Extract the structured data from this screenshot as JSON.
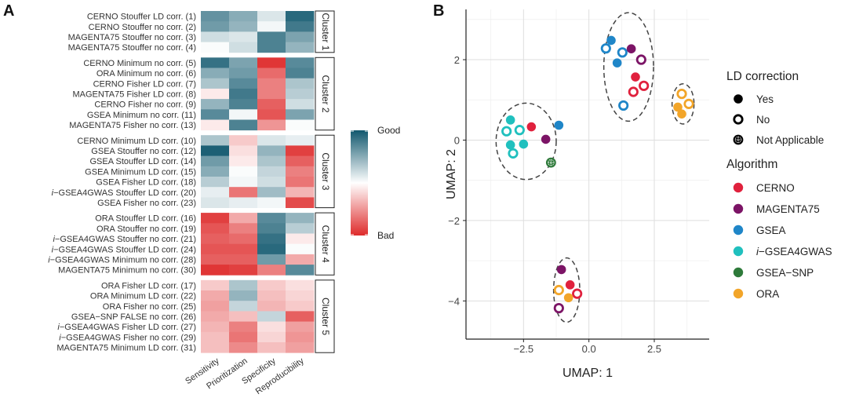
{
  "chart_data": [
    {
      "panel": "A",
      "type": "heatmap",
      "columns": [
        "Sensitivity",
        "Prioritization",
        "Specificity",
        "Reproducibility"
      ],
      "colorbar": {
        "top_label": "Good",
        "bottom_label": "Bad",
        "range": [
          -1,
          1
        ]
      },
      "clusters": [
        {
          "label": "Cluster 1",
          "rows": [
            {
              "label": "CERNO Stouffer LD corr. (1)",
              "values": [
                0.65,
                0.5,
                0.15,
                0.9
              ]
            },
            {
              "label": "CERNO Stouffer no corr. (2)",
              "values": [
                0.6,
                0.45,
                0.05,
                0.8
              ]
            },
            {
              "label": "MAGENTA75 Stouffer no corr. (3)",
              "values": [
                0.2,
                0.15,
                0.75,
                0.55
              ]
            },
            {
              "label": "MAGENTA75 Stouffer no corr. (4)",
              "values": [
                0.02,
                0.2,
                0.75,
                0.45
              ]
            }
          ]
        },
        {
          "label": "Cluster 2",
          "rows": [
            {
              "label": "CERNO Minimum no corr. (5)",
              "values": [
                0.85,
                0.55,
                -0.95,
                0.7
              ]
            },
            {
              "label": "ORA Minimum no corr. (6)",
              "values": [
                0.5,
                0.6,
                -0.7,
                0.75
              ]
            },
            {
              "label": "CERNO Fisher LD corr. (7)",
              "values": [
                0.35,
                0.7,
                -0.6,
                0.35
              ]
            },
            {
              "label": "MAGENTA75 Fisher LD corr. (8)",
              "values": [
                -0.1,
                0.8,
                -0.6,
                0.3
              ]
            },
            {
              "label": "CERNO Fisher no corr. (9)",
              "values": [
                0.45,
                0.75,
                -0.75,
                0.2
              ]
            },
            {
              "label": "GSEA Minimum no corr. (11)",
              "values": [
                0.7,
                0.05,
                -0.8,
                0.55
              ]
            },
            {
              "label": "MAGENTA75 Fisher no corr. (13)",
              "values": [
                -0.1,
                0.75,
                -0.5,
                0.02
              ]
            }
          ]
        },
        {
          "label": "Cluster 3",
          "rows": [
            {
              "label": "CERNO Minimum LD corr. (10)",
              "values": [
                0.35,
                -0.25,
                0.15,
                0.1
              ]
            },
            {
              "label": "GSEA Stouffer no corr. (12)",
              "values": [
                0.95,
                -0.15,
                0.45,
                -0.9
              ]
            },
            {
              "label": "GSEA Stouffer LD corr. (14)",
              "values": [
                0.6,
                -0.1,
                0.35,
                -0.75
              ]
            },
            {
              "label": "GSEA Minimum LD corr. (15)",
              "values": [
                0.5,
                0.02,
                0.25,
                -0.6
              ]
            },
            {
              "label": "GSEA Fisher LD corr. (18)",
              "values": [
                0.3,
                0.05,
                0.2,
                -0.65
              ]
            },
            {
              "label": "i−GSEA4GWAS Stouffer LD corr. (20)",
              "values": [
                0.1,
                -0.65,
                0.4,
                -0.35
              ]
            },
            {
              "label": "GSEA Fisher no corr. (23)",
              "values": [
                0.15,
                0.1,
                0.05,
                -0.85
              ]
            }
          ]
        },
        {
          "label": "Cluster 4",
          "rows": [
            {
              "label": "ORA Stouffer LD corr. (16)",
              "values": [
                -0.9,
                -0.4,
                0.7,
                0.45
              ]
            },
            {
              "label": "ORA Stouffer no corr. (19)",
              "values": [
                -0.8,
                -0.6,
                0.75,
                0.3
              ]
            },
            {
              "label": "i−GSEA4GWAS Stouffer no corr. (21)",
              "values": [
                -0.75,
                -0.7,
                0.85,
                -0.1
              ]
            },
            {
              "label": "i−GSEA4GWAS Stouffer LD corr. (24)",
              "values": [
                -0.8,
                -0.8,
                0.9,
                0.02
              ]
            },
            {
              "label": "i−GSEA4GWAS Minimum no corr. (28)",
              "values": [
                -0.75,
                -0.75,
                0.6,
                -0.4
              ]
            },
            {
              "label": "MAGENTA75 Minimum no corr. (30)",
              "values": [
                -0.95,
                -0.9,
                -0.6,
                0.7
              ]
            }
          ]
        },
        {
          "label": "Cluster 5",
          "rows": [
            {
              "label": "ORA Fisher LD corr. (17)",
              "values": [
                -0.25,
                0.35,
                -0.25,
                -0.15
              ]
            },
            {
              "label": "ORA Minimum LD corr. (22)",
              "values": [
                -0.4,
                0.45,
                -0.3,
                -0.2
              ]
            },
            {
              "label": "ORA Fisher no corr. (25)",
              "values": [
                -0.45,
                0.25,
                -0.35,
                -0.25
              ]
            },
            {
              "label": "GSEA−SNP FALSE no corr. (26)",
              "values": [
                -0.4,
                -0.3,
                0.25,
                -0.75
              ]
            },
            {
              "label": "i−GSEA4GWAS Fisher LD corr. (27)",
              "values": [
                -0.35,
                -0.6,
                -0.15,
                -0.45
              ]
            },
            {
              "label": "i−GSEA4GWAS Fisher no corr. (29)",
              "values": [
                -0.3,
                -0.65,
                -0.2,
                -0.5
              ]
            },
            {
              "label": "MAGENTA75 Minimum LD corr. (31)",
              "values": [
                -0.3,
                -0.55,
                -0.3,
                -0.45
              ]
            }
          ]
        }
      ]
    },
    {
      "panel": "B",
      "type": "scatter",
      "xlabel": "UMAP: 1",
      "ylabel": "UMAP: 2",
      "xlim": [
        -4.7,
        4.6
      ],
      "ylim": [
        -4.95,
        3.25
      ],
      "xticks": [
        -2.5,
        0.0,
        2.5
      ],
      "xtick_labels": [
        "−2.5",
        "0.0",
        "2.5"
      ],
      "yticks": [
        -4,
        -2,
        0,
        2
      ],
      "ytick_labels": [
        "−4",
        "−2",
        "0",
        "2"
      ],
      "grid": true,
      "algorithm_colors": {
        "CERNO": "#e0213d",
        "MAGENTA75": "#7c1466",
        "GSEA": "#1f86c8",
        "i-GSEA4GWAS": "#20c0be",
        "GSEA-SNP": "#2e7a3a",
        "ORA": "#f2a529"
      },
      "legend_ld": {
        "title": "LD correction",
        "items": [
          {
            "label": "Yes",
            "symbol": "filled"
          },
          {
            "label": "No",
            "symbol": "open"
          },
          {
            "label": "Not Applicable",
            "symbol": "crossed"
          }
        ]
      },
      "legend_algorithm": {
        "title": "Algorithm",
        "items": [
          {
            "label_prefix": "",
            "label": "CERNO",
            "key": "CERNO"
          },
          {
            "label_prefix": "",
            "label": "MAGENTA75",
            "key": "MAGENTA75"
          },
          {
            "label_prefix": "",
            "label": "GSEA",
            "key": "GSEA"
          },
          {
            "label_prefix": "i",
            "label": "−GSEA4GWAS",
            "key": "i-GSEA4GWAS"
          },
          {
            "label_prefix": "",
            "label": "GSEA−SNP",
            "key": "GSEA-SNP"
          },
          {
            "label_prefix": "",
            "label": "ORA",
            "key": "ORA"
          }
        ]
      },
      "ellipses": [
        {
          "cx": -2.4,
          "cy": -0.03,
          "rx": 1.15,
          "ry": 0.95
        },
        {
          "cx": 1.52,
          "cy": 1.82,
          "rx": 0.95,
          "ry": 1.35
        },
        {
          "cx": 3.6,
          "cy": 0.9,
          "rx": 0.42,
          "ry": 0.5
        },
        {
          "cx": -0.85,
          "cy": -3.73,
          "rx": 0.5,
          "ry": 0.8
        }
      ],
      "points": [
        {
          "x": -2.2,
          "y": 0.33,
          "algorithm": "CERNO",
          "ld": "filled"
        },
        {
          "x": -1.65,
          "y": 0.02,
          "algorithm": "MAGENTA75",
          "ld": "filled"
        },
        {
          "x": -1.15,
          "y": 0.37,
          "algorithm": "GSEA",
          "ld": "filled"
        },
        {
          "x": -3.0,
          "y": 0.5,
          "algorithm": "i-GSEA4GWAS",
          "ld": "filled"
        },
        {
          "x": -3.0,
          "y": -0.12,
          "algorithm": "i-GSEA4GWAS",
          "ld": "filled"
        },
        {
          "x": -2.5,
          "y": -0.1,
          "algorithm": "i-GSEA4GWAS",
          "ld": "filled"
        },
        {
          "x": -3.15,
          "y": 0.22,
          "algorithm": "i-GSEA4GWAS",
          "ld": "open"
        },
        {
          "x": -2.65,
          "y": 0.25,
          "algorithm": "i-GSEA4GWAS",
          "ld": "open"
        },
        {
          "x": -2.9,
          "y": -0.33,
          "algorithm": "i-GSEA4GWAS",
          "ld": "open"
        },
        {
          "x": -1.45,
          "y": -0.56,
          "algorithm": "GSEA-SNP",
          "ld": "crossed"
        },
        {
          "x": 0.85,
          "y": 2.48,
          "algorithm": "GSEA",
          "ld": "filled"
        },
        {
          "x": 1.08,
          "y": 1.92,
          "algorithm": "GSEA",
          "ld": "filled"
        },
        {
          "x": 0.65,
          "y": 2.28,
          "algorithm": "GSEA",
          "ld": "open"
        },
        {
          "x": 1.28,
          "y": 2.18,
          "algorithm": "GSEA",
          "ld": "open"
        },
        {
          "x": 1.32,
          "y": 0.86,
          "algorithm": "GSEA",
          "ld": "open"
        },
        {
          "x": 1.62,
          "y": 2.27,
          "algorithm": "MAGENTA75",
          "ld": "filled"
        },
        {
          "x": 2.0,
          "y": 2.0,
          "algorithm": "MAGENTA75",
          "ld": "open"
        },
        {
          "x": 1.78,
          "y": 1.57,
          "algorithm": "CERNO",
          "ld": "filled"
        },
        {
          "x": 1.7,
          "y": 1.2,
          "algorithm": "CERNO",
          "ld": "open"
        },
        {
          "x": 2.1,
          "y": 1.35,
          "algorithm": "CERNO",
          "ld": "open"
        },
        {
          "x": 3.55,
          "y": 1.15,
          "algorithm": "ORA",
          "ld": "open"
        },
        {
          "x": 3.82,
          "y": 0.9,
          "algorithm": "ORA",
          "ld": "open"
        },
        {
          "x": 3.4,
          "y": 0.82,
          "algorithm": "ORA",
          "ld": "filled"
        },
        {
          "x": 3.55,
          "y": 0.65,
          "algorithm": "ORA",
          "ld": "filled"
        },
        {
          "x": -1.05,
          "y": -3.22,
          "algorithm": "MAGENTA75",
          "ld": "filled"
        },
        {
          "x": -0.72,
          "y": -3.6,
          "algorithm": "CERNO",
          "ld": "filled"
        },
        {
          "x": -1.15,
          "y": -3.73,
          "algorithm": "ORA",
          "ld": "open"
        },
        {
          "x": -0.45,
          "y": -3.82,
          "algorithm": "CERNO",
          "ld": "open"
        },
        {
          "x": -0.78,
          "y": -3.92,
          "algorithm": "ORA",
          "ld": "filled"
        },
        {
          "x": -1.15,
          "y": -4.18,
          "algorithm": "MAGENTA75",
          "ld": "open"
        }
      ]
    }
  ],
  "panel_labels": {
    "a": "A",
    "b": "B"
  }
}
